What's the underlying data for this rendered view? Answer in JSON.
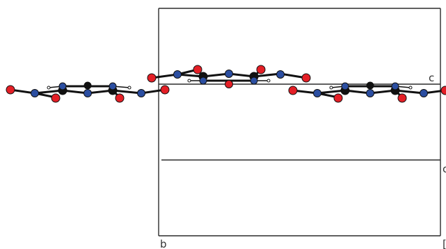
{
  "figure": {
    "axis_labels": {
      "b": "b",
      "c": "c",
      "edge": "c"
    },
    "colors": {
      "background": "#ffffff",
      "frame": "#2b2b2b",
      "bond": "#111111",
      "oxygen": "#e41f26",
      "nitrogen": "#2b4ea1",
      "carbon": "#111111",
      "hydrogen": "#ffffff"
    },
    "atom_types": [
      "oxygen",
      "nitrogen",
      "carbon",
      "hydrogen"
    ]
  }
}
